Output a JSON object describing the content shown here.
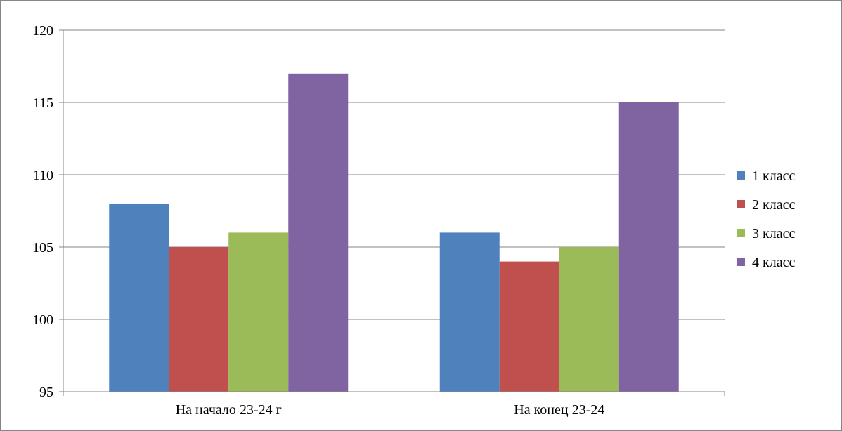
{
  "chart_data": {
    "type": "bar",
    "categories": [
      "На начало 23-24 г",
      "На конец 23-24"
    ],
    "series": [
      {
        "name": "1 класс",
        "values": [
          108,
          106
        ],
        "color": "#4F81BD"
      },
      {
        "name": "2 класс",
        "values": [
          105,
          104
        ],
        "color": "#C0504D"
      },
      {
        "name": "3 класс",
        "values": [
          106,
          105
        ],
        "color": "#9BBB59"
      },
      {
        "name": "4 класс",
        "values": [
          117,
          115
        ],
        "color": "#8064A2"
      }
    ],
    "ylim": [
      95,
      120
    ],
    "yticks": [
      95,
      100,
      105,
      110,
      115,
      120
    ],
    "grid": true,
    "legend": "right",
    "title": "",
    "xlabel": "",
    "ylabel": ""
  }
}
